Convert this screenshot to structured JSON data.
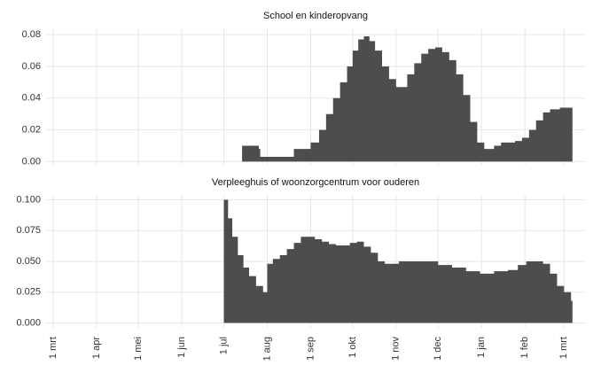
{
  "chart_data": [
    {
      "type": "area",
      "title": "School en kinderopvang",
      "color": "#4d4d4d",
      "x": [
        108,
        135,
        147,
        148,
        170,
        172,
        184,
        190,
        195,
        200,
        205,
        210,
        214,
        218,
        222,
        226,
        230,
        235,
        240,
        245,
        248,
        253,
        258,
        263,
        268,
        273,
        278,
        283,
        288,
        293,
        298,
        303,
        308,
        315,
        320,
        325,
        330,
        335,
        340,
        345,
        350,
        355,
        362,
        370
      ],
      "values": [
        0,
        0.01,
        0.008,
        0.003,
        0.003,
        0.008,
        0.012,
        0.02,
        0.03,
        0.04,
        0.05,
        0.06,
        0.07,
        0.077,
        0.079,
        0.076,
        0.07,
        0.06,
        0.052,
        0.047,
        0.047,
        0.055,
        0.062,
        0.068,
        0.071,
        0.072,
        0.069,
        0.064,
        0.055,
        0.042,
        0.025,
        0.012,
        0.008,
        0.01,
        0.012,
        0.012,
        0.013,
        0.015,
        0.02,
        0.026,
        0.031,
        0.033,
        0.034,
        0.034
      ],
      "xlim": [
        -5,
        380
      ],
      "ylim": [
        -0.002,
        0.084
      ],
      "yticks": [
        {
          "value": 0,
          "label": "0.00"
        },
        0.02,
        0.04,
        0.06,
        0.08
      ]
    },
    {
      "type": "area",
      "title": "Verpleeghuis of woonzorgcentrum voor ouderen",
      "color": "#4d4d4d",
      "x": [
        122,
        125,
        128,
        132,
        136,
        140,
        145,
        150,
        153,
        157,
        162,
        167,
        172,
        177,
        182,
        187,
        192,
        197,
        202,
        207,
        212,
        217,
        222,
        227,
        232,
        237,
        242,
        247,
        255,
        265,
        275,
        285,
        295,
        305,
        315,
        325,
        332,
        338,
        345,
        350,
        355,
        360,
        365,
        370
      ],
      "values": [
        0.1,
        0.085,
        0.07,
        0.055,
        0.045,
        0.038,
        0.03,
        0.025,
        0.048,
        0.052,
        0.055,
        0.06,
        0.065,
        0.07,
        0.07,
        0.068,
        0.066,
        0.064,
        0.063,
        0.063,
        0.065,
        0.066,
        0.062,
        0.057,
        0.05,
        0.048,
        0.048,
        0.05,
        0.05,
        0.05,
        0.047,
        0.045,
        0.042,
        0.04,
        0.042,
        0.043,
        0.047,
        0.05,
        0.05,
        0.048,
        0.04,
        0.03,
        0.025,
        0.018
      ],
      "xlim": [
        -5,
        380
      ],
      "ylim": [
        -0.004,
        0.104
      ],
      "yticks": [
        {
          "value": 0,
          "label": "0.000"
        },
        0.025,
        {
          "value": 0.05,
          "label": "0.050"
        },
        0.075,
        {
          "value": 0.1,
          "label": "0.100"
        }
      ],
      "xticks": [
        {
          "value": 0,
          "label": "1 mrt"
        },
        {
          "value": 31,
          "label": "1 apr"
        },
        {
          "value": 61,
          "label": "1 mei"
        },
        {
          "value": 92,
          "label": "1 jun"
        },
        {
          "value": 122,
          "label": "1 jul"
        },
        {
          "value": 153,
          "label": "1 aug"
        },
        {
          "value": 184,
          "label": "1 sep"
        },
        {
          "value": 214,
          "label": "1 okt"
        },
        {
          "value": 245,
          "label": "1 nov"
        },
        {
          "value": 275,
          "label": "1 dec"
        },
        {
          "value": 306,
          "label": "1 jan"
        },
        {
          "value": 337,
          "label": "1 feb"
        },
        {
          "value": 365,
          "label": "1 mrt"
        }
      ]
    }
  ]
}
